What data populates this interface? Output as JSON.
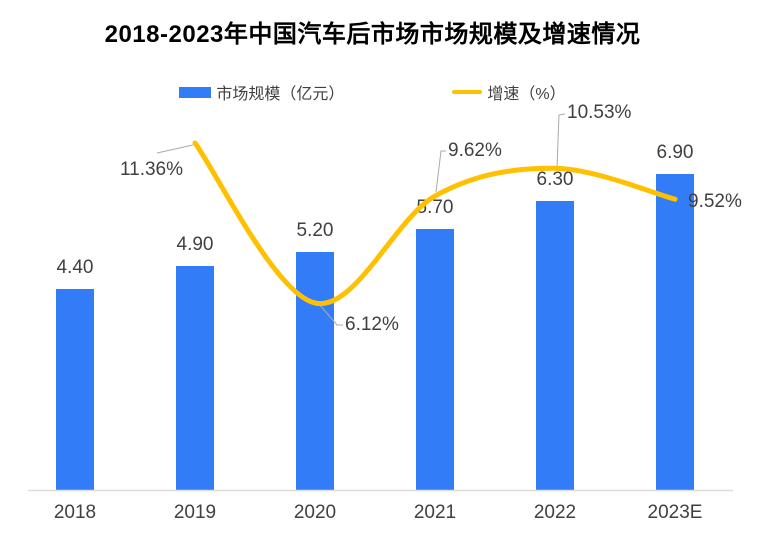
{
  "title": "2018-2023年中国汽车后市场市场规模及增速情况",
  "legend": {
    "market_size": {
      "label": "市场规模（亿元）"
    },
    "growth": {
      "label": "增速（%）"
    }
  },
  "colors": {
    "bar": "#337CF7",
    "line": "#FFC000",
    "text": "#404040",
    "leader": "#A9A9A9",
    "axis": "#DCDCDC",
    "title": "#000000",
    "background": "#FFFFFF"
  },
  "chart_data": {
    "type": "combo",
    "title": "2018-2023年中国汽车后市场市场规模及增速情况",
    "categories": [
      "2018",
      "2019",
      "2020",
      "2021",
      "2022",
      "2023E"
    ],
    "series": [
      {
        "name": "市场规模（亿元）",
        "type": "bar",
        "color": "#337CF7",
        "values": [
          4.4,
          4.9,
          5.2,
          5.7,
          6.3,
          6.9
        ],
        "data_labels": [
          "4.40",
          "4.90",
          "5.20",
          "5.70",
          "6.30",
          "6.90"
        ]
      },
      {
        "name": "增速（%）",
        "type": "line",
        "color": "#FFC000",
        "values": [
          null,
          11.36,
          6.12,
          9.62,
          10.53,
          9.52
        ],
        "data_labels": [
          null,
          "11.36%",
          "6.12%",
          "9.62%",
          "10.53%",
          "9.52%"
        ]
      }
    ],
    "xlabel": "",
    "ylabel": "",
    "bar_axis_range": [
      0,
      10.8
    ],
    "line_axis_range_percent": [
      0,
      13
    ],
    "grid": false,
    "y_axis_visible": false,
    "legend_position": "top"
  }
}
